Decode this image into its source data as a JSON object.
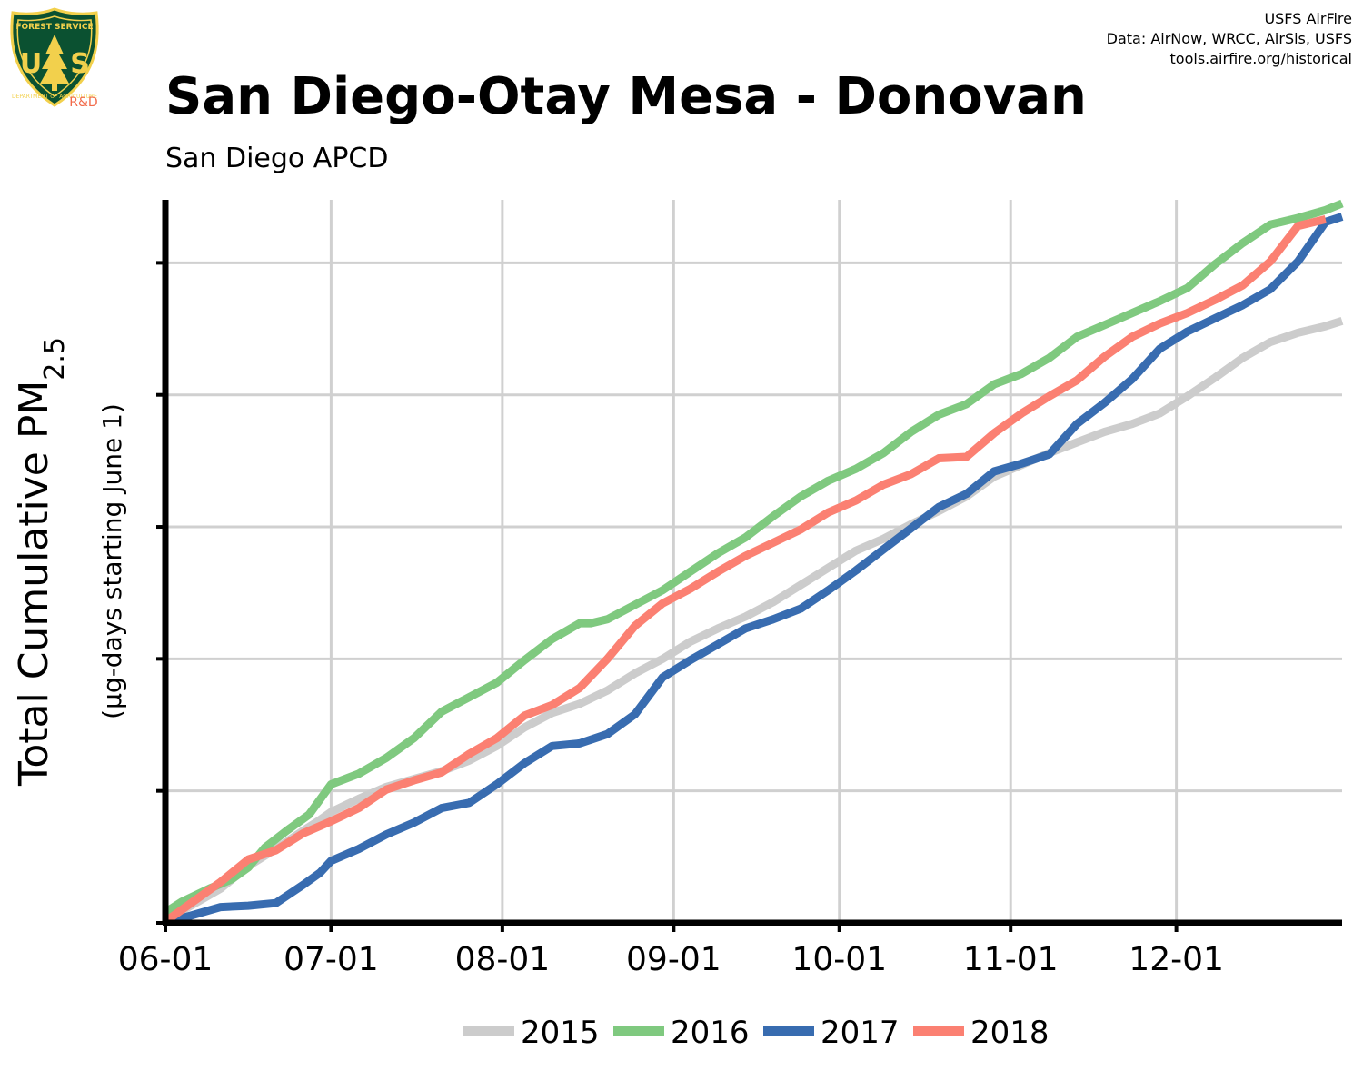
{
  "header": {
    "title": "San Diego-Otay Mesa - Donovan",
    "subtitle": "San Diego APCD",
    "credit_lines": [
      "USFS AirFire",
      "Data: AirNow, WRCC, AirSis, USFS",
      "tools.airfire.org/historical"
    ]
  },
  "logo": {
    "icon": "usfs-shield-icon",
    "lettering": [
      "FOREST SERVICE",
      "U",
      "S",
      "DEPARTMENT OF AGRICULTURE"
    ],
    "tag": "R&D",
    "colors": {
      "shield": "#0b5131",
      "border": "#f2d04c",
      "tag": "#f26b4b"
    }
  },
  "chart_data": {
    "type": "line",
    "title": "San Diego-Otay Mesa - Donovan",
    "subtitle": "San Diego APCD",
    "ylabel_main": "Total Cumulative PM",
    "ylabel_sub": "2.5",
    "ylabel_units": "(µg-days starting June 1)",
    "xlabel": "",
    "x_ticks": [
      "06-01",
      "07-01",
      "08-01",
      "09-01",
      "10-01",
      "11-01",
      "12-01"
    ],
    "x_tick_days": [
      0,
      30,
      61,
      92,
      122,
      153,
      183
    ],
    "xlim_days": [
      0,
      213
    ],
    "ylim": [
      0,
      5450
    ],
    "y_ticks": [
      0,
      1000,
      2000,
      3000,
      4000,
      5000
    ],
    "y_tick_labels_shown": false,
    "grid": true,
    "legend_position": "bottom",
    "series": [
      {
        "name": "2015",
        "color": "#cccccc",
        "points": [
          [
            0,
            20
          ],
          [
            5,
            140
          ],
          [
            10,
            260
          ],
          [
            15,
            430
          ],
          [
            20,
            560
          ],
          [
            25,
            700
          ],
          [
            28,
            780
          ],
          [
            30,
            840
          ],
          [
            35,
            940
          ],
          [
            40,
            1030
          ],
          [
            45,
            1090
          ],
          [
            50,
            1150
          ],
          [
            55,
            1230
          ],
          [
            60,
            1340
          ],
          [
            65,
            1480
          ],
          [
            70,
            1590
          ],
          [
            75,
            1660
          ],
          [
            80,
            1760
          ],
          [
            85,
            1890
          ],
          [
            90,
            2000
          ],
          [
            95,
            2130
          ],
          [
            100,
            2230
          ],
          [
            105,
            2320
          ],
          [
            110,
            2430
          ],
          [
            115,
            2560
          ],
          [
            120,
            2690
          ],
          [
            125,
            2820
          ],
          [
            130,
            2910
          ],
          [
            135,
            3020
          ],
          [
            140,
            3120
          ],
          [
            145,
            3230
          ],
          [
            150,
            3380
          ],
          [
            155,
            3470
          ],
          [
            160,
            3560
          ],
          [
            165,
            3640
          ],
          [
            170,
            3720
          ],
          [
            175,
            3780
          ],
          [
            180,
            3860
          ],
          [
            185,
            3990
          ],
          [
            190,
            4130
          ],
          [
            195,
            4280
          ],
          [
            200,
            4400
          ],
          [
            205,
            4470
          ],
          [
            210,
            4520
          ],
          [
            213,
            4560
          ]
        ]
      },
      {
        "name": "2016",
        "color": "#7fc97f",
        "points": [
          [
            0,
            80
          ],
          [
            3,
            160
          ],
          [
            8,
            260
          ],
          [
            12,
            330
          ],
          [
            15,
            420
          ],
          [
            18,
            570
          ],
          [
            22,
            700
          ],
          [
            26,
            820
          ],
          [
            30,
            1050
          ],
          [
            35,
            1130
          ],
          [
            40,
            1250
          ],
          [
            45,
            1400
          ],
          [
            50,
            1600
          ],
          [
            55,
            1710
          ],
          [
            60,
            1820
          ],
          [
            65,
            1990
          ],
          [
            70,
            2150
          ],
          [
            75,
            2270
          ],
          [
            77,
            2270
          ],
          [
            80,
            2300
          ],
          [
            85,
            2410
          ],
          [
            90,
            2520
          ],
          [
            95,
            2660
          ],
          [
            100,
            2800
          ],
          [
            105,
            2920
          ],
          [
            110,
            3080
          ],
          [
            115,
            3230
          ],
          [
            120,
            3350
          ],
          [
            125,
            3440
          ],
          [
            130,
            3560
          ],
          [
            135,
            3720
          ],
          [
            140,
            3850
          ],
          [
            145,
            3930
          ],
          [
            150,
            4080
          ],
          [
            155,
            4160
          ],
          [
            160,
            4280
          ],
          [
            165,
            4440
          ],
          [
            170,
            4530
          ],
          [
            175,
            4620
          ],
          [
            180,
            4710
          ],
          [
            185,
            4810
          ],
          [
            190,
            4990
          ],
          [
            195,
            5150
          ],
          [
            200,
            5290
          ],
          [
            205,
            5340
          ],
          [
            210,
            5400
          ],
          [
            213,
            5450
          ]
        ]
      },
      {
        "name": "2017",
        "color": "#386cb0",
        "points": [
          [
            0,
            0
          ],
          [
            5,
            60
          ],
          [
            10,
            120
          ],
          [
            15,
            130
          ],
          [
            20,
            150
          ],
          [
            25,
            290
          ],
          [
            28,
            380
          ],
          [
            30,
            470
          ],
          [
            35,
            560
          ],
          [
            40,
            670
          ],
          [
            45,
            760
          ],
          [
            50,
            870
          ],
          [
            55,
            910
          ],
          [
            60,
            1050
          ],
          [
            65,
            1210
          ],
          [
            70,
            1340
          ],
          [
            75,
            1360
          ],
          [
            80,
            1430
          ],
          [
            85,
            1580
          ],
          [
            90,
            1860
          ],
          [
            95,
            1990
          ],
          [
            100,
            2110
          ],
          [
            105,
            2230
          ],
          [
            110,
            2300
          ],
          [
            115,
            2380
          ],
          [
            120,
            2520
          ],
          [
            125,
            2670
          ],
          [
            130,
            2830
          ],
          [
            135,
            2990
          ],
          [
            140,
            3150
          ],
          [
            145,
            3250
          ],
          [
            150,
            3420
          ],
          [
            155,
            3480
          ],
          [
            160,
            3550
          ],
          [
            165,
            3780
          ],
          [
            170,
            3940
          ],
          [
            175,
            4120
          ],
          [
            180,
            4350
          ],
          [
            185,
            4480
          ],
          [
            190,
            4580
          ],
          [
            195,
            4680
          ],
          [
            200,
            4800
          ],
          [
            205,
            5010
          ],
          [
            210,
            5310
          ],
          [
            213,
            5350
          ]
        ]
      },
      {
        "name": "2018",
        "color": "#fb8072",
        "points": [
          [
            0,
            10
          ],
          [
            5,
            160
          ],
          [
            10,
            310
          ],
          [
            15,
            480
          ],
          [
            20,
            550
          ],
          [
            25,
            680
          ],
          [
            30,
            770
          ],
          [
            35,
            870
          ],
          [
            40,
            1010
          ],
          [
            45,
            1080
          ],
          [
            50,
            1140
          ],
          [
            55,
            1280
          ],
          [
            60,
            1400
          ],
          [
            65,
            1570
          ],
          [
            70,
            1650
          ],
          [
            75,
            1780
          ],
          [
            80,
            2000
          ],
          [
            85,
            2250
          ],
          [
            90,
            2420
          ],
          [
            95,
            2530
          ],
          [
            100,
            2660
          ],
          [
            105,
            2780
          ],
          [
            110,
            2880
          ],
          [
            115,
            2980
          ],
          [
            120,
            3110
          ],
          [
            125,
            3200
          ],
          [
            130,
            3320
          ],
          [
            135,
            3400
          ],
          [
            140,
            3520
          ],
          [
            145,
            3530
          ],
          [
            150,
            3710
          ],
          [
            155,
            3860
          ],
          [
            160,
            3990
          ],
          [
            165,
            4110
          ],
          [
            170,
            4290
          ],
          [
            175,
            4440
          ],
          [
            180,
            4540
          ],
          [
            185,
            4620
          ],
          [
            190,
            4720
          ],
          [
            195,
            4830
          ],
          [
            200,
            5010
          ],
          [
            205,
            5280
          ],
          [
            210,
            5330
          ]
        ]
      }
    ]
  }
}
